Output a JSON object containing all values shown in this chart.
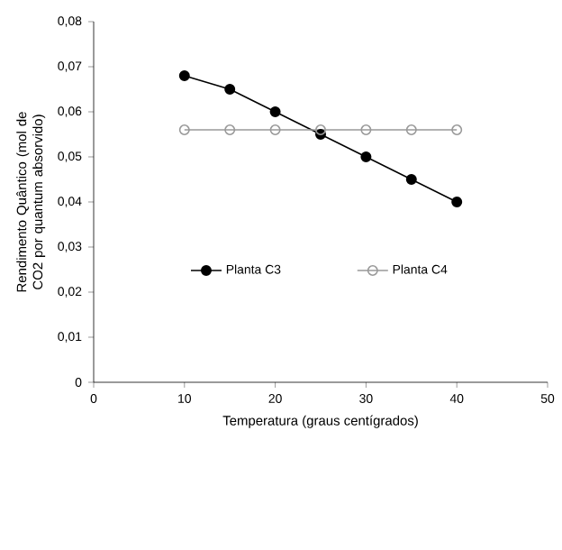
{
  "chart_data": {
    "type": "line",
    "xlabel": "Temperatura (graus centígrados)",
    "ylabel": "Rendimento Quântico (mol de CO2 por quantum absorvido)",
    "x": [
      10,
      15,
      20,
      25,
      30,
      35,
      40
    ],
    "series": [
      {
        "name": "Planta C3",
        "color": "#000000",
        "values": [
          0.068,
          0.065,
          0.06,
          0.055,
          0.05,
          0.045,
          0.04
        ]
      },
      {
        "name": "Planta C4",
        "color": "#999999",
        "values": [
          0.056,
          0.056,
          0.056,
          0.056,
          0.056,
          0.056,
          0.056
        ]
      }
    ],
    "xlim": [
      0,
      50
    ],
    "xticks": [
      0,
      10,
      20,
      30,
      40,
      50
    ],
    "ylim": [
      0,
      0.08
    ],
    "yticks": [
      0,
      {
        "value": 0.01,
        "label": "0,01"
      },
      {
        "value": 0.02,
        "label": "0,02"
      },
      {
        "value": 0.03,
        "label": "0,03"
      },
      {
        "value": 0.04,
        "label": "0,04"
      },
      {
        "value": 0.05,
        "label": "0,05"
      },
      {
        "value": 0.06,
        "label": "0,06"
      },
      {
        "value": 0.07,
        "label": "0,07"
      },
      {
        "value": 0.08,
        "label": "0,08"
      }
    ],
    "marker": "circle",
    "line_style": "solid",
    "legend": "bottom",
    "grid": false
  }
}
